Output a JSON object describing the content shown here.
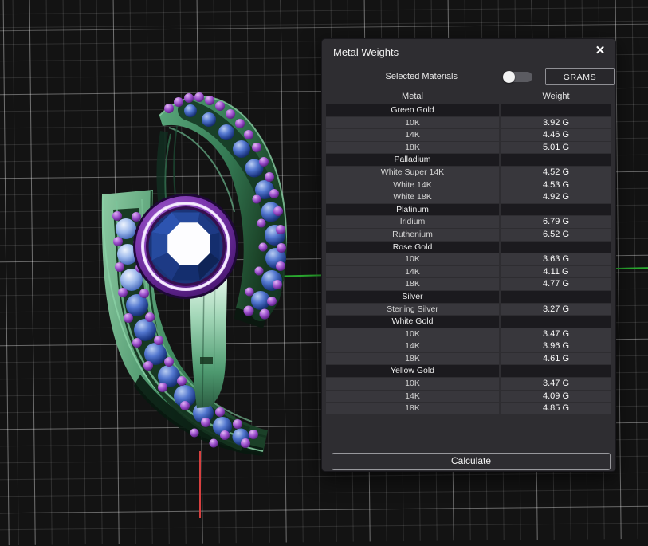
{
  "viewport": {
    "object": "gem-set bypass ring 3d model",
    "axis_colors": {
      "x_axis_red": "#d84040",
      "z_axis_green": "#2aa82f"
    },
    "model_colors": {
      "metal_green": "#4e9a70",
      "gem_blue": "#2a4fa0",
      "prong_purple": "#8a3cba",
      "bezel_purple": "#7a35ac",
      "center_stone_navy": "#1b3578"
    }
  },
  "dialog": {
    "title": "Metal Weights",
    "close_label": "✕",
    "selected_materials_label": "Selected Materials",
    "toggle_state": "off",
    "unit_button_label": "GRAMS",
    "calculate_label": "Calculate",
    "table": {
      "columns": [
        "Metal",
        "Weight"
      ],
      "sections": [
        {
          "name": "Green Gold",
          "rows": [
            [
              "10K",
              "3.92 G"
            ],
            [
              "14K",
              "4.46 G"
            ],
            [
              "18K",
              "5.01 G"
            ]
          ]
        },
        {
          "name": "Palladium",
          "rows": [
            [
              "White Super 14K",
              "4.52 G"
            ],
            [
              "White 14K",
              "4.53 G"
            ],
            [
              "White 18K",
              "4.92 G"
            ]
          ]
        },
        {
          "name": "Platinum",
          "rows": [
            [
              "Iridium",
              "6.79 G"
            ],
            [
              "Ruthenium",
              "6.52 G"
            ]
          ]
        },
        {
          "name": "Rose Gold",
          "rows": [
            [
              "10K",
              "3.63 G"
            ],
            [
              "14K",
              "4.11 G"
            ],
            [
              "18K",
              "4.77 G"
            ]
          ]
        },
        {
          "name": "Silver",
          "rows": [
            [
              "Sterling Silver",
              "3.27 G"
            ]
          ]
        },
        {
          "name": "White Gold",
          "rows": [
            [
              "10K",
              "3.47 G"
            ],
            [
              "14K",
              "3.96 G"
            ],
            [
              "18K",
              "4.61 G"
            ]
          ]
        },
        {
          "name": "Yellow Gold",
          "rows": [
            [
              "10K",
              "3.47 G"
            ],
            [
              "14K",
              "4.09 G"
            ],
            [
              "18K",
              "4.85 G"
            ]
          ]
        }
      ]
    }
  }
}
